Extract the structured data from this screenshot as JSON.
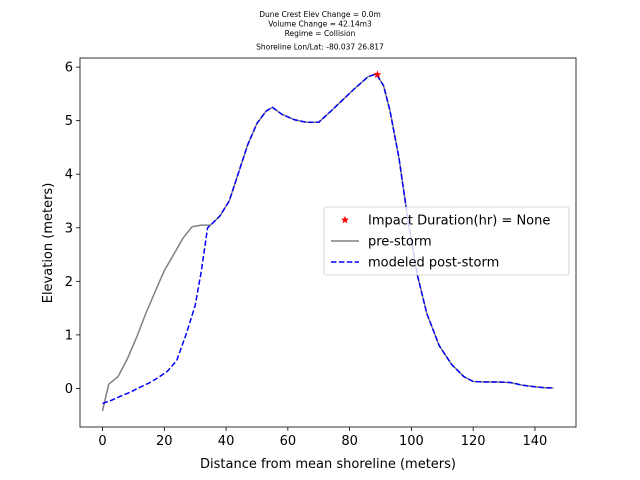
{
  "chart_data": {
    "type": "line",
    "title_lines": [
      "Dune Crest Elev Change = 0.0m",
      "Volume Change = 42.14m3",
      "Regime = Collision",
      "Shoreline Lon/Lat: -80.037 26.817"
    ],
    "xlabel": "Distance from mean shoreline (meters)",
    "ylabel": "Elevation (meters)",
    "xlim": [
      -7.3,
      153.3
    ],
    "ylim": [
      -0.72,
      6.17
    ],
    "xticks": [
      0,
      20,
      40,
      60,
      80,
      100,
      120,
      140
    ],
    "yticks": [
      0,
      1,
      2,
      3,
      4,
      5,
      6
    ],
    "grid": false,
    "legend_position": "center-right",
    "series": [
      {
        "name": "pre-storm",
        "style": "solid",
        "color": "#808080",
        "x": [
          0,
          2,
          5,
          8,
          11,
          14,
          17,
          20,
          23,
          26,
          29,
          32,
          35,
          38,
          41,
          44,
          47,
          50,
          53,
          55,
          58,
          62,
          66,
          70,
          74,
          78,
          82,
          86,
          88,
          89,
          91,
          93,
          96,
          99,
          102,
          105,
          109,
          113,
          117,
          120,
          124,
          128,
          132,
          136,
          140,
          144,
          146
        ],
        "y": [
          -0.42,
          0.08,
          0.22,
          0.55,
          0.95,
          1.4,
          1.8,
          2.2,
          2.5,
          2.8,
          3.02,
          3.05,
          3.05,
          3.22,
          3.5,
          4.02,
          4.55,
          4.95,
          5.18,
          5.25,
          5.12,
          5.02,
          4.97,
          4.97,
          5.18,
          5.4,
          5.62,
          5.82,
          5.86,
          5.84,
          5.65,
          5.2,
          4.3,
          3.1,
          2.1,
          1.4,
          0.8,
          0.45,
          0.22,
          0.13,
          0.12,
          0.12,
          0.11,
          0.06,
          0.03,
          0.01,
          0.01
        ]
      },
      {
        "name": "modeled post-storm",
        "style": "dashed",
        "color": "#0000ff",
        "x": [
          0,
          3,
          6,
          9,
          12,
          15,
          18,
          21,
          24,
          27,
          30,
          32,
          34,
          35,
          38,
          41,
          44,
          47,
          50,
          53,
          55,
          58,
          62,
          66,
          70,
          74,
          78,
          82,
          86,
          88,
          89,
          91,
          93,
          96,
          99,
          102,
          105,
          109,
          113,
          117,
          120,
          124,
          128,
          132,
          136,
          140,
          144,
          146
        ],
        "y": [
          -0.28,
          -0.22,
          -0.14,
          -0.07,
          0.02,
          0.1,
          0.2,
          0.32,
          0.52,
          1.0,
          1.55,
          2.2,
          3.0,
          3.05,
          3.22,
          3.5,
          4.02,
          4.55,
          4.95,
          5.18,
          5.25,
          5.12,
          5.02,
          4.97,
          4.97,
          5.18,
          5.4,
          5.62,
          5.82,
          5.86,
          5.84,
          5.65,
          5.2,
          4.3,
          3.1,
          2.1,
          1.4,
          0.8,
          0.45,
          0.22,
          0.13,
          0.12,
          0.12,
          0.11,
          0.06,
          0.03,
          0.01,
          0.01
        ]
      }
    ],
    "markers": [
      {
        "name": "Impact Duration(hr) = None",
        "symbol": "star",
        "color": "#ff0000",
        "x": 89,
        "y": 5.86
      }
    ],
    "legend": [
      {
        "label": "Impact Duration(hr) = None",
        "kind": "marker",
        "color": "#ff0000"
      },
      {
        "label": "pre-storm",
        "kind": "solid",
        "color": "#808080"
      },
      {
        "label": "modeled post-storm",
        "kind": "dashed",
        "color": "#0000ff"
      }
    ]
  }
}
